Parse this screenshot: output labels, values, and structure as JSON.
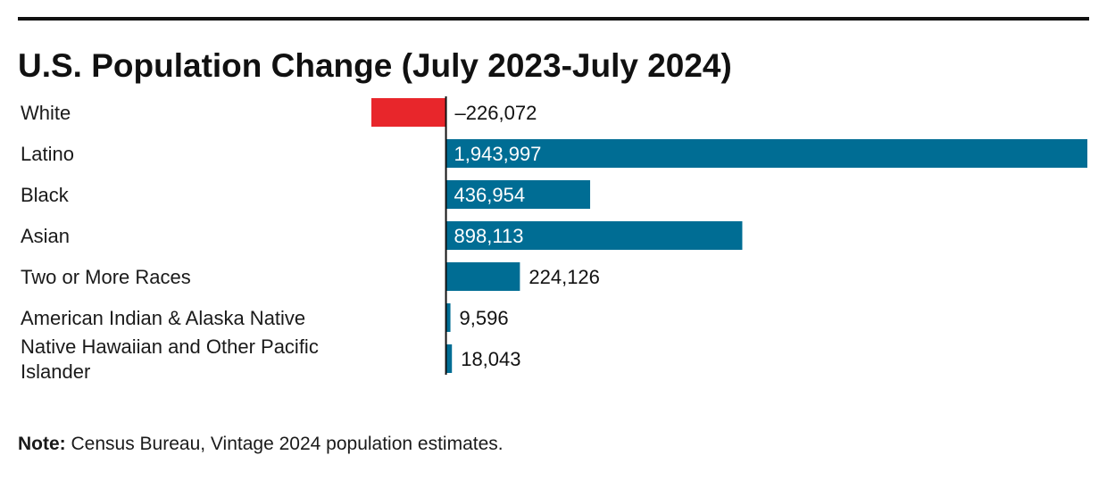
{
  "chart_data": {
    "type": "bar",
    "orientation": "horizontal",
    "title": "U.S. Population Change (July 2023-July 2024)",
    "categories": [
      "White",
      "Latino",
      "Black",
      "Asian",
      "Two or More Races",
      "American Indian & Alaska Native",
      "Native Hawaiian and Other Pacific Islander"
    ],
    "values": [
      -226072,
      1943997,
      436954,
      898113,
      224126,
      9596,
      18043
    ],
    "value_labels": [
      "–226,072",
      "1,943,997",
      "436,954",
      "898,113",
      "224,126",
      "9,596",
      "18,043"
    ],
    "xlim": [
      -226072,
      1943997
    ],
    "grid": false,
    "legend": "none",
    "colors": {
      "positive": "#006d94",
      "negative": "#e8262b",
      "label_inside": "#ffffff",
      "label_outside": "#111111",
      "zero_line": "#111111"
    }
  },
  "note": {
    "label": "Note:",
    "text": " Census Bureau, Vintage 2024 population estimates."
  }
}
